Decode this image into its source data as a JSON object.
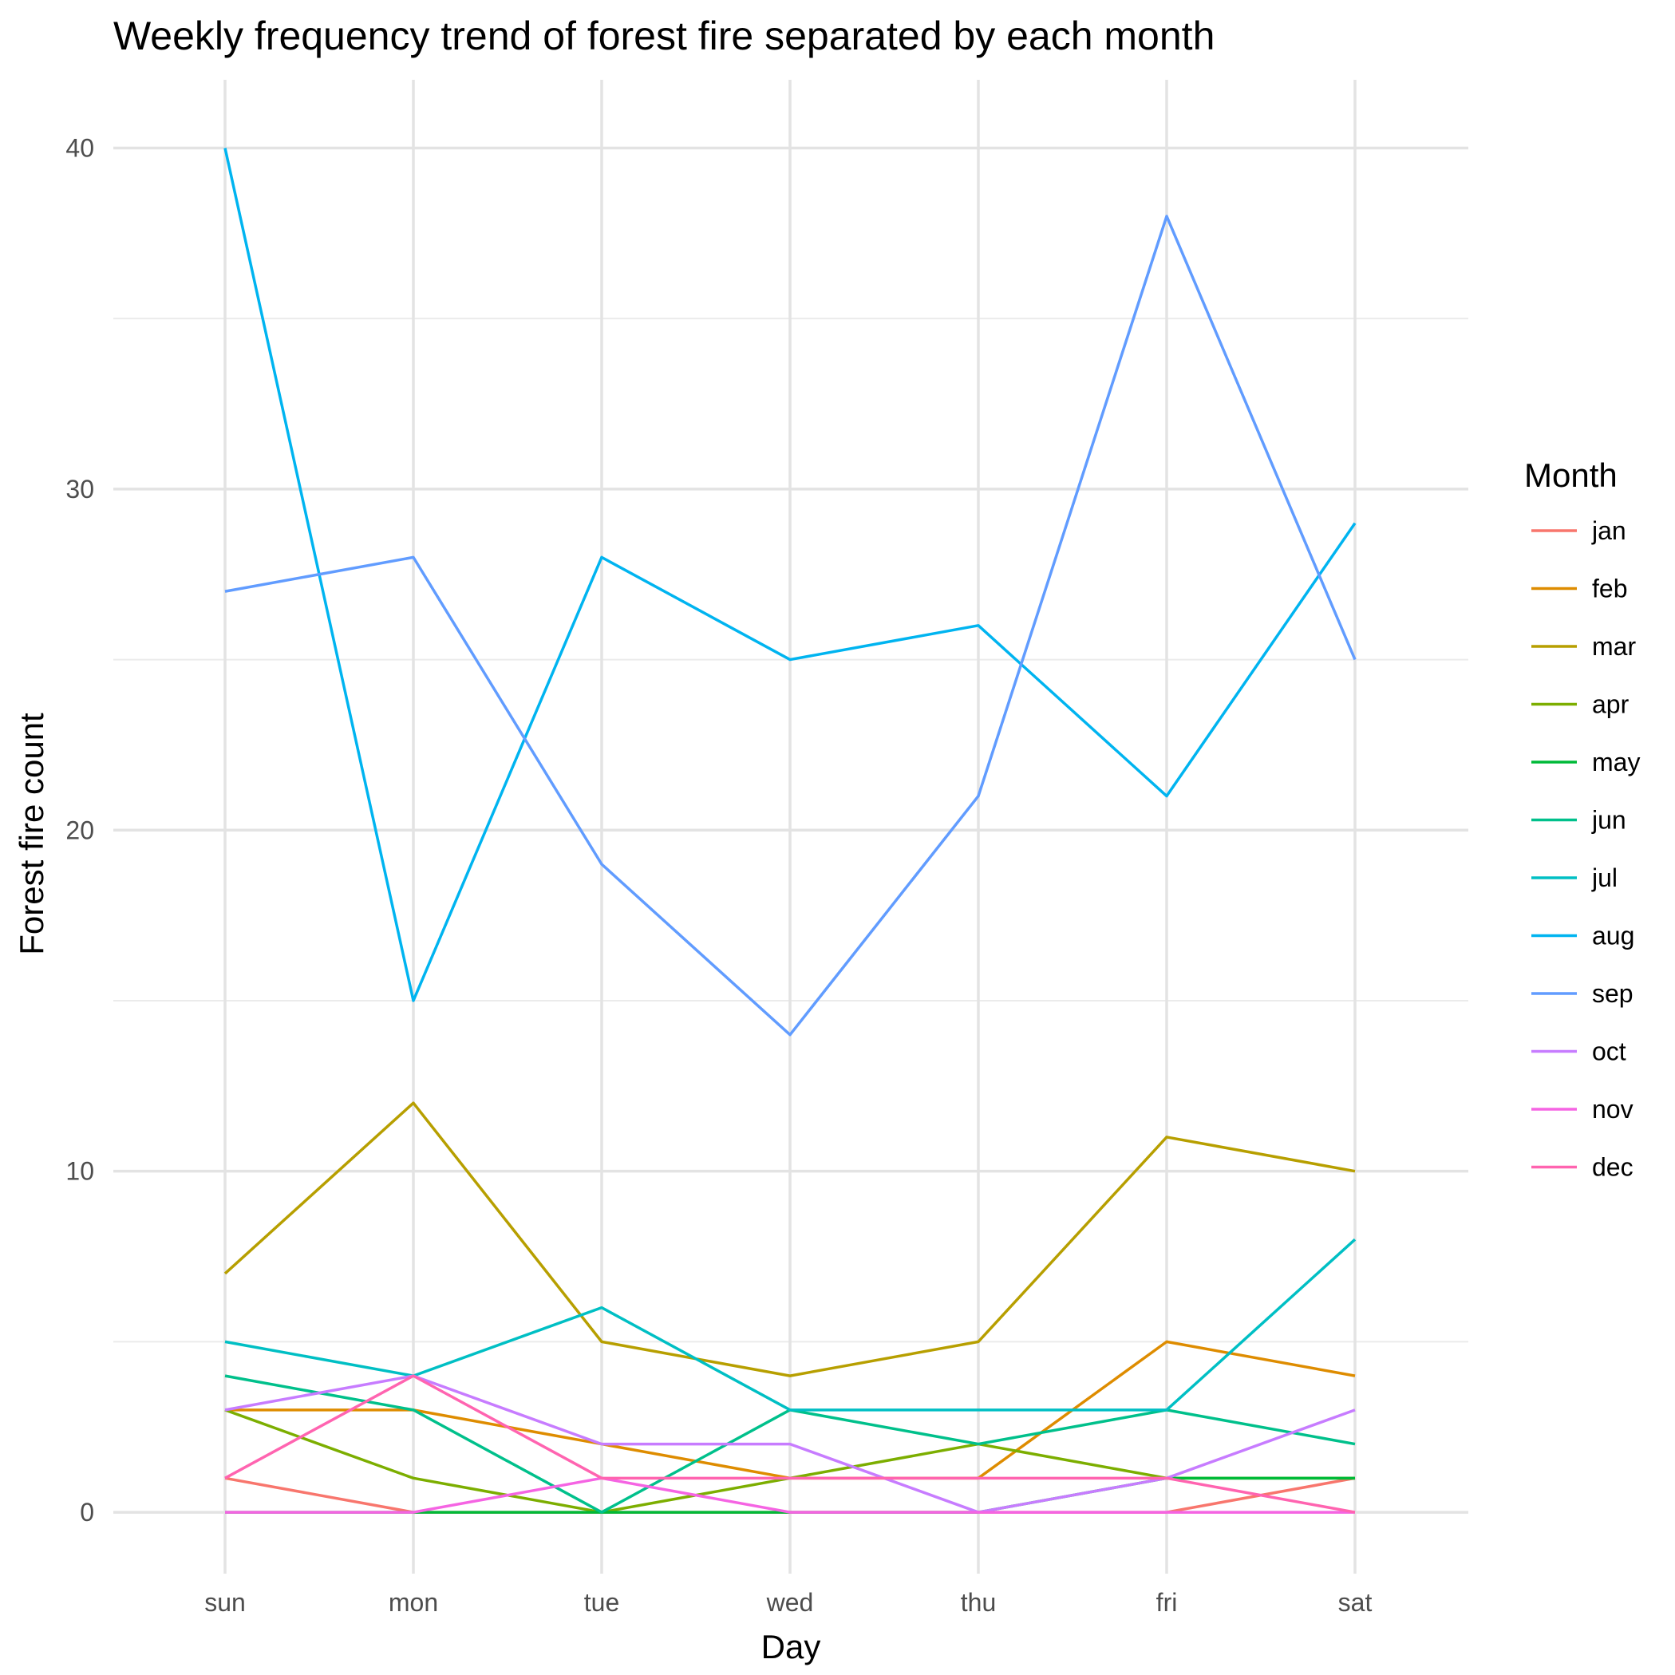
{
  "chart_data": {
    "type": "line",
    "title": "Weekly frequency trend of forest fire separated by each month",
    "xlabel": "Day",
    "ylabel": "Forest fire count",
    "categories": [
      "sun",
      "mon",
      "tue",
      "wed",
      "thu",
      "fri",
      "sat"
    ],
    "ylim": [
      -1.8,
      42
    ],
    "yticks": [
      0,
      10,
      20,
      30,
      40
    ],
    "grid": true,
    "legend": {
      "title": "Month",
      "position": "right"
    },
    "series": [
      {
        "name": "jan",
        "color": "#F8766D",
        "values": [
          1,
          0,
          0,
          0,
          0,
          0,
          1
        ]
      },
      {
        "name": "feb",
        "color": "#DE8C00",
        "values": [
          3,
          3,
          2,
          1,
          1,
          5,
          4
        ]
      },
      {
        "name": "mar",
        "color": "#B79F00",
        "values": [
          7,
          12,
          5,
          4,
          5,
          11,
          10
        ]
      },
      {
        "name": "apr",
        "color": "#7CAE00",
        "values": [
          3,
          1,
          0,
          1,
          2,
          1,
          1
        ]
      },
      {
        "name": "may",
        "color": "#00BA38",
        "values": [
          0,
          0,
          0,
          0,
          0,
          1,
          1
        ]
      },
      {
        "name": "jun",
        "color": "#00C08B",
        "values": [
          4,
          3,
          0,
          3,
          2,
          3,
          2
        ]
      },
      {
        "name": "jul",
        "color": "#00BFC4",
        "values": [
          5,
          4,
          6,
          3,
          3,
          3,
          8
        ]
      },
      {
        "name": "aug",
        "color": "#00B4F0",
        "values": [
          40,
          15,
          28,
          25,
          26,
          21,
          29
        ]
      },
      {
        "name": "sep",
        "color": "#619CFF",
        "values": [
          27,
          28,
          19,
          14,
          21,
          38,
          25
        ]
      },
      {
        "name": "oct",
        "color": "#C77CFF",
        "values": [
          3,
          4,
          2,
          2,
          0,
          1,
          3
        ]
      },
      {
        "name": "nov",
        "color": "#F564E3",
        "values": [
          0,
          0,
          1,
          0,
          0,
          0,
          0
        ]
      },
      {
        "name": "dec",
        "color": "#FF64B0",
        "values": [
          1,
          4,
          1,
          1,
          1,
          1,
          0
        ]
      }
    ]
  }
}
